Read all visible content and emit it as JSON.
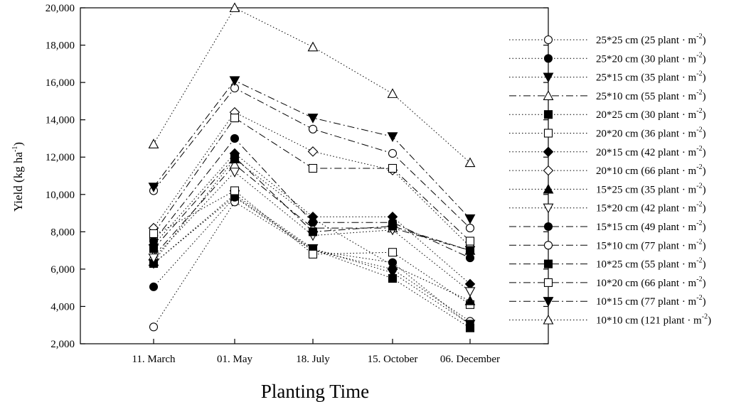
{
  "chart_data": {
    "type": "line",
    "xlabel": "Planting Time",
    "ylabel": "Yield (kg  ha",
    "ylabel_sup": "-1",
    "ylabel_tail": ")",
    "categories": [
      "11. March",
      "01. May",
      "18. July",
      "15. October",
      "06. December"
    ],
    "ylim": [
      2000,
      20000
    ],
    "yticks": [
      2000,
      4000,
      6000,
      8000,
      10000,
      12000,
      14000,
      16000,
      18000,
      20000
    ],
    "ytick_labels": [
      "2,000",
      "4,000",
      "6,000",
      "8,000",
      "10,000",
      "12,000",
      "14,000",
      "16,000",
      "18,000",
      "20,000"
    ],
    "grid": false,
    "legend_position": "right",
    "legend_unit_tail": ")",
    "series": [
      {
        "name": "25*25 cm (25 plant · m",
        "sup": "-2",
        "marker": "circle-open",
        "dash": "dot",
        "values": [
          2900,
          9600,
          7000,
          6000,
          3200
        ]
      },
      {
        "name": "25*20 cm (30 plant · m",
        "sup": "-2",
        "marker": "circle-filled",
        "dash": "dot",
        "values": [
          5050,
          9850,
          7000,
          6350,
          3000
        ]
      },
      {
        "name": "25*15 cm (35 plant · m",
        "sup": "-2",
        "marker": "triangle-down-filled",
        "dash": "dot",
        "values": [
          6300,
          10000,
          7100,
          5800,
          3050
        ]
      },
      {
        "name": "25*10 cm (55 plant · m",
        "sup": "-2",
        "marker": "triangle-up-open",
        "dash": "dashdot",
        "values": [
          6700,
          11600,
          8200,
          8200,
          7000
        ]
      },
      {
        "name": "20*25 cm (30 plant · m",
        "sup": "-2",
        "marker": "square-filled",
        "dash": "dot",
        "values": [
          6300,
          9900,
          7050,
          5500,
          2850
        ]
      },
      {
        "name": "20*20 cm (36 plant · m",
        "sup": "-2",
        "marker": "square-open",
        "dash": "dot",
        "values": [
          7800,
          10200,
          6800,
          6900,
          4100
        ]
      },
      {
        "name": "20*15 cm (42 plant · m",
        "sup": "-2",
        "marker": "diamond-filled",
        "dash": "dot",
        "values": [
          7300,
          12200,
          8800,
          8800,
          5200
        ]
      },
      {
        "name": "20*10 cm (66 plant · m",
        "sup": "-2",
        "marker": "diamond-open",
        "dash": "dot",
        "values": [
          8200,
          14400,
          12300,
          11300,
          7200
        ]
      },
      {
        "name": "15*25 cm (35 plant · m",
        "sup": "-2",
        "marker": "triangle-up-filled",
        "dash": "dot",
        "values": [
          6400,
          11900,
          8700,
          6200,
          4300
        ]
      },
      {
        "name": "15*20 cm (42 plant · m",
        "sup": "-2",
        "marker": "triangle-down-open",
        "dash": "dot",
        "values": [
          6600,
          11200,
          7800,
          8100,
          4800
        ]
      },
      {
        "name": "15*15 cm (49 plant · m",
        "sup": "-2",
        "marker": "circle-filled",
        "dash": "dashdot",
        "values": [
          7500,
          13000,
          8500,
          8500,
          6600
        ]
      },
      {
        "name": "15*10 cm (77 plant · m",
        "sup": "-2",
        "marker": "circle-open",
        "dash": "dashdot",
        "values": [
          10200,
          15700,
          13500,
          12200,
          8200
        ]
      },
      {
        "name": "10*25 cm (55 plant · m",
        "sup": "-2",
        "marker": "square-filled",
        "dash": "dashdot",
        "values": [
          7100,
          12000,
          8000,
          8300,
          7000
        ]
      },
      {
        "name": "10*20 cm (66 plant · m",
        "sup": "-2",
        "marker": "square-open",
        "dash": "dashdot",
        "values": [
          7900,
          14100,
          11400,
          11400,
          7500
        ]
      },
      {
        "name": "10*15 cm (77 plant · m",
        "sup": "-2",
        "marker": "triangle-down-filled",
        "dash": "dashdot",
        "values": [
          10400,
          16100,
          14100,
          13100,
          8700
        ]
      },
      {
        "name": "10*10 cm (121 plant · m",
        "sup": "-2",
        "marker": "triangle-up-open",
        "dash": "dot",
        "values": [
          12700,
          20000,
          17900,
          15400,
          11700
        ]
      }
    ]
  }
}
